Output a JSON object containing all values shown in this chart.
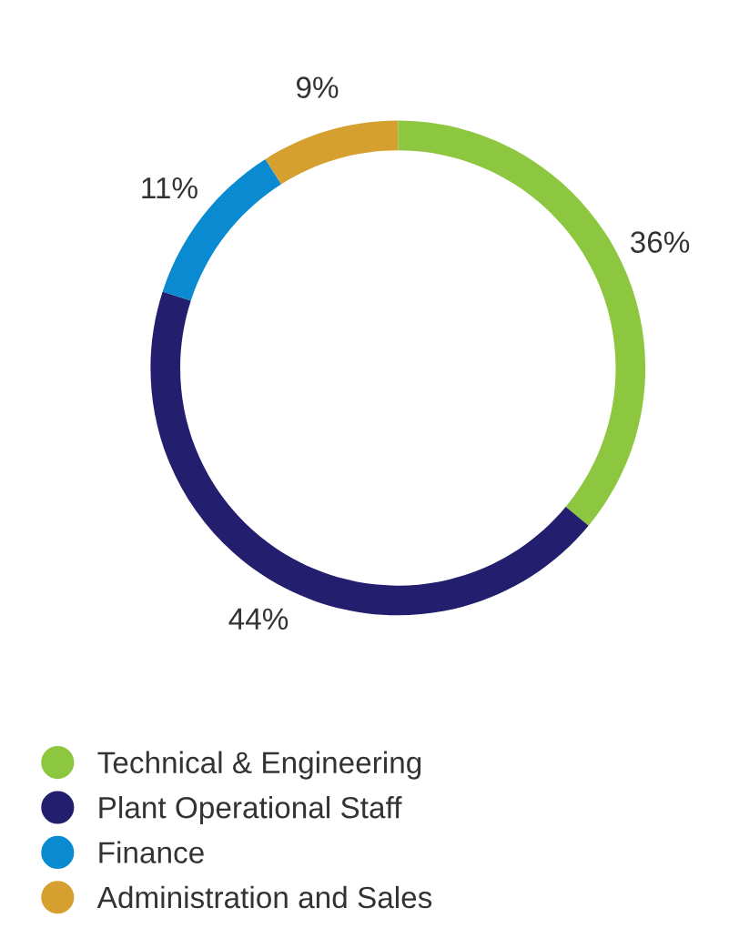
{
  "chart_data": {
    "type": "donut",
    "categories": [
      "Technical & Engineering",
      "Plant Operational Staff",
      "Finance",
      "Administration and Sales"
    ],
    "values": [
      36,
      44,
      11,
      9
    ],
    "colors": [
      "#8dc63f",
      "#231f6e",
      "#0a8ad0",
      "#d6a030"
    ],
    "value_labels": [
      "36%",
      "44%",
      "11%",
      "9%"
    ],
    "legend": "bottom"
  }
}
